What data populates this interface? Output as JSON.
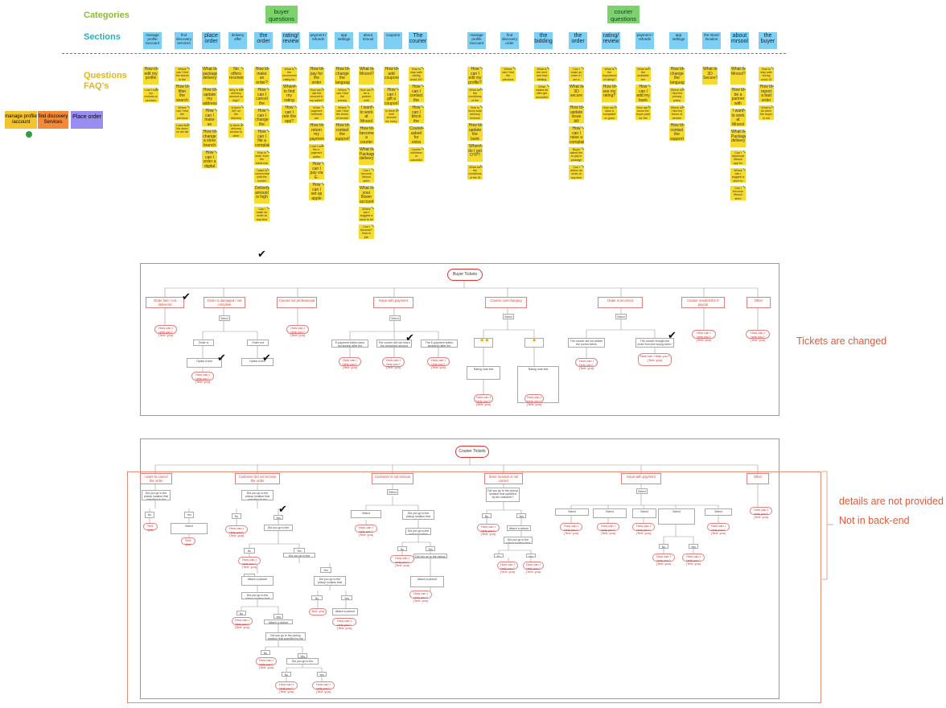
{
  "labels": {
    "categories": "Categories",
    "sections": "Sections",
    "questions": "Questions",
    "faqs": "FAQ's"
  },
  "categories": {
    "buyer": "buyer questions",
    "courier": "courier questions"
  },
  "buyer_sections": [
    "manage profile /account",
    "find discovery services",
    "place order",
    "delivery offer",
    "the order",
    "rating/ review",
    "payment / refunds",
    "app settings",
    "about mrsool",
    "coupons",
    "The courier"
  ],
  "courier_sections": [
    "manage profile /account",
    "find discovery order",
    "the bidding",
    "the order",
    "rating/ review",
    "payment / refunds",
    "app settings",
    "the store/ location",
    "about mrsool",
    "the buyer"
  ],
  "legend": {
    "profile": "manage profile /account",
    "discovery": "find discovery Services",
    "order": "Place order"
  },
  "faq_buyer": [
    [
      "How to edit my profile",
      "I can't edit my reviews or services"
    ],
    [
      "Where can I find the stores in the app?",
      "How to filter the search result",
      "Where can I find the previous orders?",
      "I cant find the store on the list"
    ],
    [
      "What is package delivery?",
      "How to update my address",
      "How can I make an order?",
      "How to change a store branch",
      "How can I order a digital card"
    ],
    [
      "No offers received",
      "Why is the delivery amount so high?",
      "Is there VAT on the delivery amount?",
      "Is there a delivery service to other cities?"
    ],
    [
      "How to make an order?",
      "How can I cancel the order?",
      "How can I change the courier?",
      "How can I file a complaint",
      "How to order from the electronic device",
      "I want to communicate with the courier",
      "Delivery amount is high",
      "Can I make an order at any time for example?"
    ],
    [
      "What is the recommended rating for the courier",
      "Where to find my rating",
      "How can I rate the app?"
    ],
    [
      "How to pay for the order",
      "How can I use the amount in my wallet?",
      "What payment methods are available?",
      "How to return my payment method",
      "I can't see the e-payment option",
      "How can I pay via E-payment?",
      "How can I set up apple pay?"
    ],
    [
      "How to change the language",
      "Where can I find the privacy policy?",
      "Where can I find the terms of service",
      "How to contact the support?"
    ],
    [
      "What is Mrsool?",
      "How can I be a partner with Mrsool?",
      "I want to work at Mrsool",
      "How to become a courier",
      "What is Package delivery?",
      "Can I become Mrsool store partner?",
      "What is your flower account?",
      "Where can I suggest a store to be added",
      "Can I become? How to join Mrsool?"
    ],
    [
      "How to add coupons",
      "How can I gift a coupon?",
      "Is there a limit amount for every coupon?"
    ],
    [
      "How to stay safe during covid-19?",
      "How can I contact the courier?",
      "How can I block the courier?",
      "Courier asked for extra charge",
      "Courier withdrew or canceled the order"
    ]
  ],
  "faq_courier": [
    [
      "How can I edit my profile?",
      "What are the conditions of the account",
      "How to know total delivery revenue",
      "How to update the bank details",
      "Where do I get OTP?",
      "What are the conditions of the ID card during account"
    ],
    [
      "Where can I find the previous orders"
    ],
    [
      "What is the next and how bidding amount",
      "What makes an offer get accepted by buyers?"
    ],
    [
      "Can I make an order if I am a courier?",
      "What is 3D secure",
      "How to update issue bill",
      "How can I raise a complaint",
      "Buyer asked the to pay in package delivery",
      "Can I deliver an order at any time from a restaurant"
    ],
    [
      "What is the importance of rating?",
      "How to see my rating?",
      "How can I raise a complaint or good rating"
    ],
    [
      "What are the available fee methods",
      "How can I add my bank account",
      "How can I know the buyer paid for the order"
    ],
    [
      "How to change the language",
      "Where do I find the privacy policy",
      "Where do I find the terms of service",
      "How to contact the support"
    ],
    [
      "What is 3D Secure?"
    ],
    [
      "What is Mrsool?",
      "How to be a partner with Mrsool",
      "I want to work at Mrsool",
      "What is Package delivery?",
      "Can I download Mrsool app for different type of phones",
      "Where can I suggest a store to add",
      "Can I become Mrsool store partner"
    ],
    [
      "How to stay safe during covid-19",
      "How to report a bad order",
      "What to do when the buyer is not responding"
    ]
  ],
  "buyer_tickets": {
    "title": "Buyer Tickets",
    "heads": [
      "Order late / not delivered",
      "Order is damaged / not complete",
      "Courier not professional",
      "Issue with payment",
      "Courier overcharging",
      "Order is incorrect",
      "Courier needed the E payout",
      "Other"
    ],
    "help": "How can I help you? (Text: you)",
    "details": "Select",
    "damaged": "Order is damaged",
    "not_complete": "Order not complete",
    "payment_opts": [
      "E-payment button does not appear after the courier reached the NP",
      "The courier did not return the remaining amount",
      "The E-payment button appeared after the customer paid the amount"
    ],
    "incorrect_opts": [
      "The courier did not deliver the correct items",
      "The courier brought the order from the wrong store / branch"
    ],
    "option_a": "Option A text",
    "rating_note": "Rating note text"
  },
  "courier_tickets": {
    "title": "Courier Tickets",
    "heads": [
      "I want to cancel the order",
      "Customer did not receive the order",
      "Customer is not serious",
      "Store location is not correct",
      "Issue with payment",
      "Other"
    ],
    "help": "How can I help you? (Text: you)",
    "question": "Did you go to the pickup location that specified by the customer?",
    "yes": "Yes",
    "no": "No",
    "select": "Select",
    "text": "Text: you",
    "picture": "Attach a picture"
  },
  "annotations": {
    "tickets_changed": "Tickets are changed",
    "details": "details are not provided",
    "backend": "Not in back-end"
  },
  "colors": {
    "note": "#f6da2e",
    "section": "#7dd0f3",
    "category": "#7cd36c",
    "check": "#2ea043",
    "annotation": "#e25b3c"
  }
}
